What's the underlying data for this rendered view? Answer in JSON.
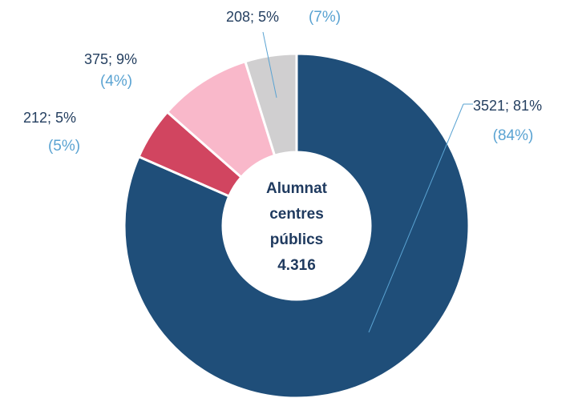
{
  "chart_data": {
    "type": "donut",
    "values": [
      3521,
      212,
      375,
      208
    ],
    "value_labels": [
      "3521; 81%",
      "212; 5%",
      "375; 9%",
      "208; 5%"
    ],
    "secondary_labels": [
      "(84%)",
      "(5%)",
      "(4%)",
      "(7%)"
    ],
    "colors": [
      "#1f4e79",
      "#d14560",
      "#f9b8ca",
      "#d0cfd0"
    ],
    "center_label": [
      "Alumnat",
      "centres",
      "públics",
      "4.316"
    ]
  }
}
